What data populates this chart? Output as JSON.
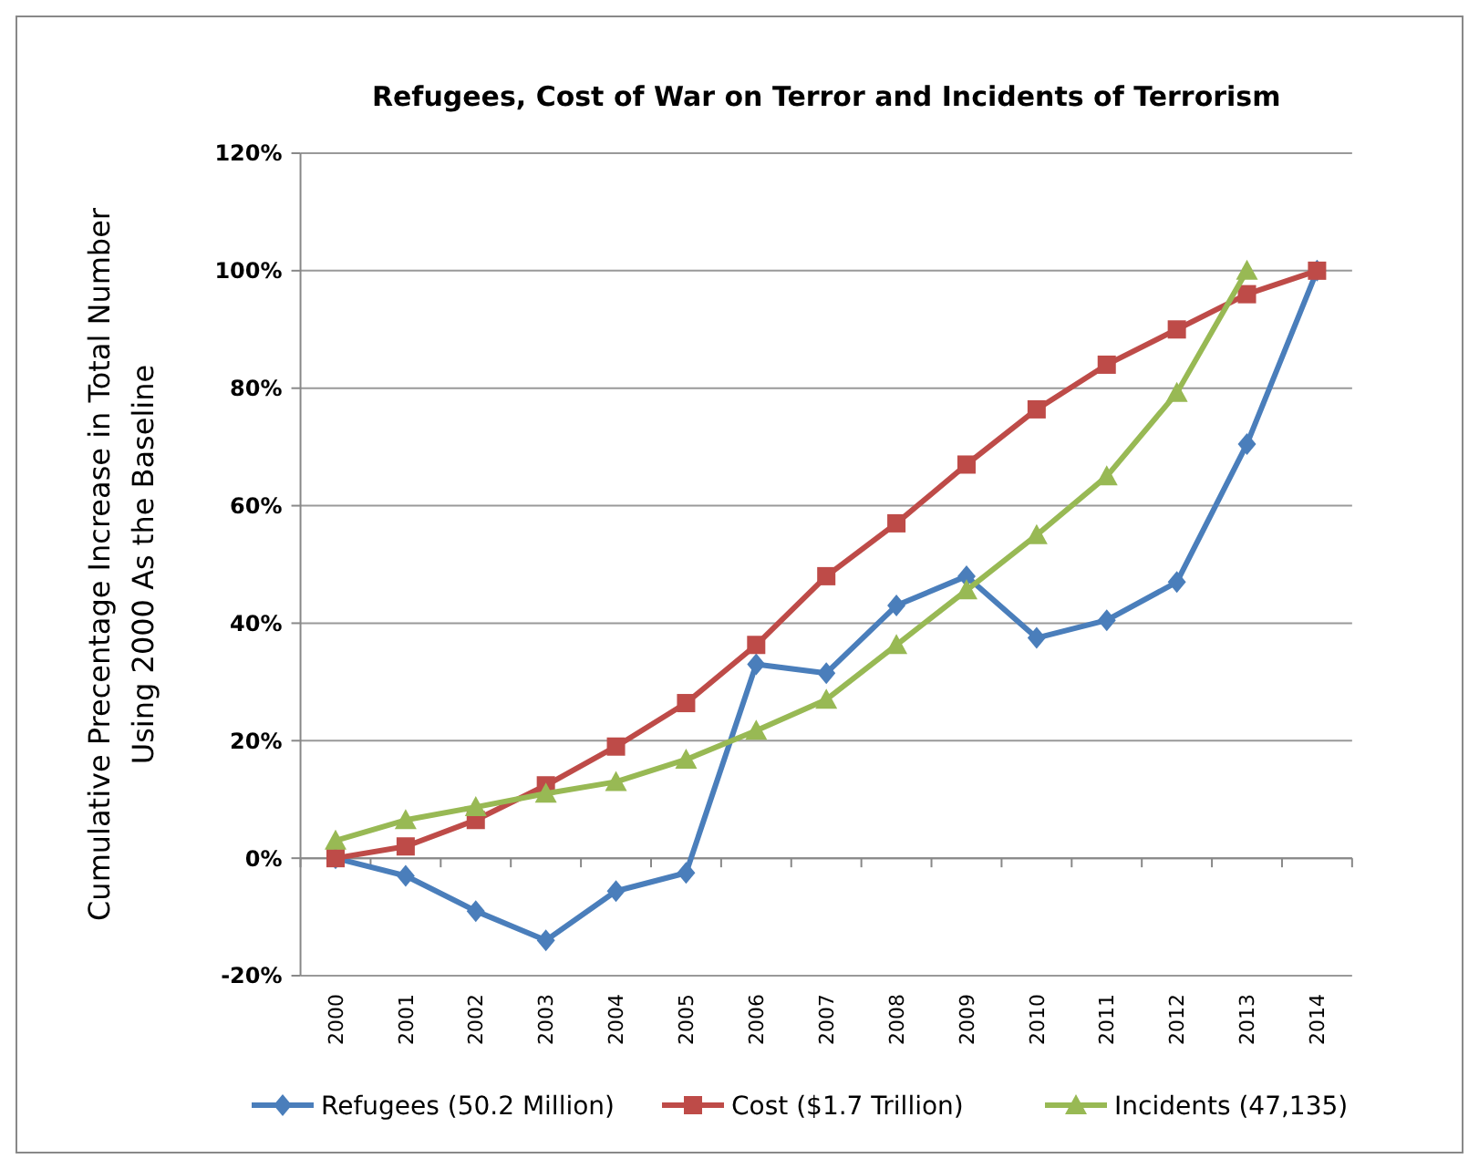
{
  "chart_data": {
    "type": "line",
    "title": "Refugees, Cost of War on Terror and Incidents of Terrorism",
    "ylabel": "Cumulative Precentage Increase in Total Number\nUsing 2000   As the Baseline",
    "categories": [
      "2000",
      "2001",
      "2002",
      "2003",
      "2004",
      "2005",
      "2006",
      "2007",
      "2008",
      "2009",
      "2010",
      "2011",
      "2012",
      "2013",
      "2014"
    ],
    "series": [
      {
        "name": "Refugees (50.2 Million)",
        "color": "#4a7ebb",
        "marker": "diamond",
        "values": [
          0,
          -3,
          -9,
          -14,
          -5.6,
          -2.5,
          33,
          31.5,
          43,
          48,
          37.5,
          40.5,
          47,
          70.5,
          100
        ]
      },
      {
        "name": "Cost ($1.7 Trillion)",
        "color": "#be4b48",
        "marker": "square",
        "values": [
          0,
          2,
          6.5,
          12.4,
          19,
          26.4,
          36.3,
          48,
          57,
          67,
          76.4,
          84,
          90,
          96,
          100
        ]
      },
      {
        "name": "Incidents (47,135)",
        "color": "#98b954",
        "marker": "triangle",
        "values": [
          3,
          6.5,
          8.7,
          11,
          13,
          16.8,
          21.7,
          27,
          36.3,
          45.6,
          55,
          65,
          79.2,
          100,
          null
        ]
      }
    ],
    "ylim": [
      -20,
      120
    ],
    "yticks": [
      {
        "value": -20,
        "label": "-20%"
      },
      {
        "value": 0,
        "label": "0%"
      },
      {
        "value": 20,
        "label": "20%"
      },
      {
        "value": 40,
        "label": "40%"
      },
      {
        "value": 60,
        "label": "60%"
      },
      {
        "value": 80,
        "label": "80%"
      },
      {
        "value": 100,
        "label": "100%"
      },
      {
        "value": 120,
        "label": "120%"
      }
    ],
    "grid": "y",
    "legend": "bottom",
    "line_style": "solid"
  }
}
